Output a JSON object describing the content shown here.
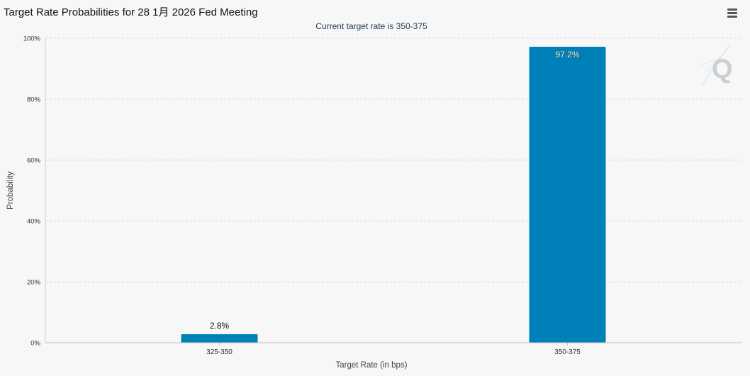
{
  "header": {
    "title": "Target Rate Probabilities for 28 1月 2026 Fed Meeting",
    "menu_icon": "hamburger-menu-icon"
  },
  "watermark": {
    "icon": "q-logo-icon",
    "letter": "Q"
  },
  "colors": {
    "bar": "#0080b8",
    "grid": "#d8d8d8"
  },
  "chart_data": {
    "type": "bar",
    "title": "Target Rate Probabilities for 28 1月 2026 Fed Meeting",
    "subtitle": "Current target rate is 350-375",
    "xlabel": "Target Rate (in bps)",
    "ylabel": "Probability",
    "categories": [
      "325-350",
      "350-375"
    ],
    "values": [
      2.8,
      97.2
    ],
    "data_labels": [
      "2.8%",
      "97.2%"
    ],
    "ylim": [
      0,
      100
    ],
    "yticks": [
      0,
      20,
      40,
      60,
      80,
      100
    ],
    "ytick_labels": [
      "0%",
      "20%",
      "40%",
      "60%",
      "80%",
      "100%"
    ],
    "grid": true
  }
}
